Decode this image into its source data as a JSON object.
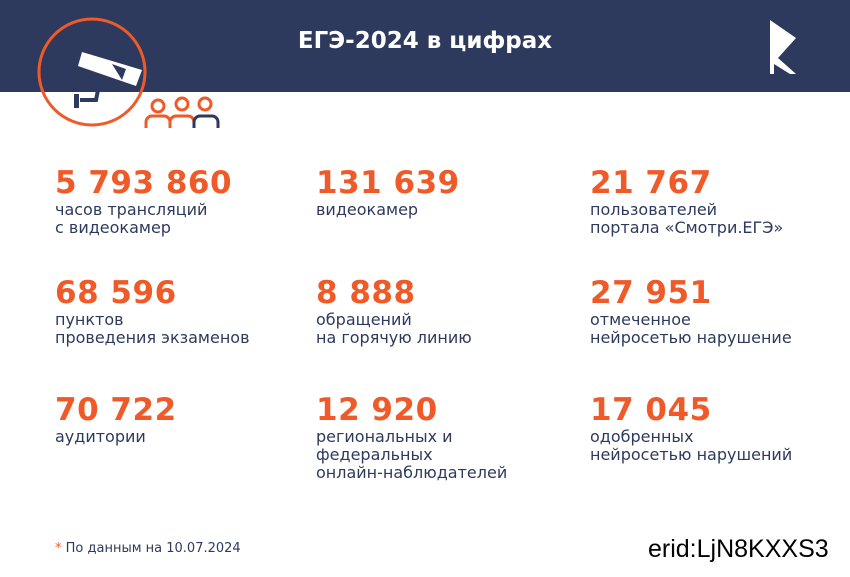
{
  "header": {
    "title": "ЕГЭ-2024 в цифрах"
  },
  "stats": [
    {
      "value": "5 793 860",
      "lines": [
        "часов трансляций",
        "с видеокамер"
      ]
    },
    {
      "value": "131 639",
      "lines": [
        "видеокамер"
      ]
    },
    {
      "value": "21 767",
      "lines": [
        "пользователей",
        "портала «Смотри.ЕГЭ»"
      ]
    },
    {
      "value": "68 596",
      "lines": [
        "пунктов",
        "проведения экзаменов"
      ]
    },
    {
      "value": "8 888",
      "lines": [
        "обращений",
        "на горячую линию"
      ]
    },
    {
      "value": "27 951",
      "lines": [
        "отмеченное",
        "нейросетью нарушение"
      ]
    },
    {
      "value": "70 722",
      "lines": [
        "аудитории"
      ]
    },
    {
      "value": "12 920",
      "lines": [
        "региональных и",
        "федеральных",
        "онлайн-наблюдателей"
      ]
    },
    {
      "value": "17 045",
      "lines": [
        "одобренных",
        "нейросетью нарушений"
      ]
    }
  ],
  "footnote": {
    "mark": "*",
    "text": "По данным на 10.07.2024"
  },
  "erid": "erid:LjN8KXXS3"
}
